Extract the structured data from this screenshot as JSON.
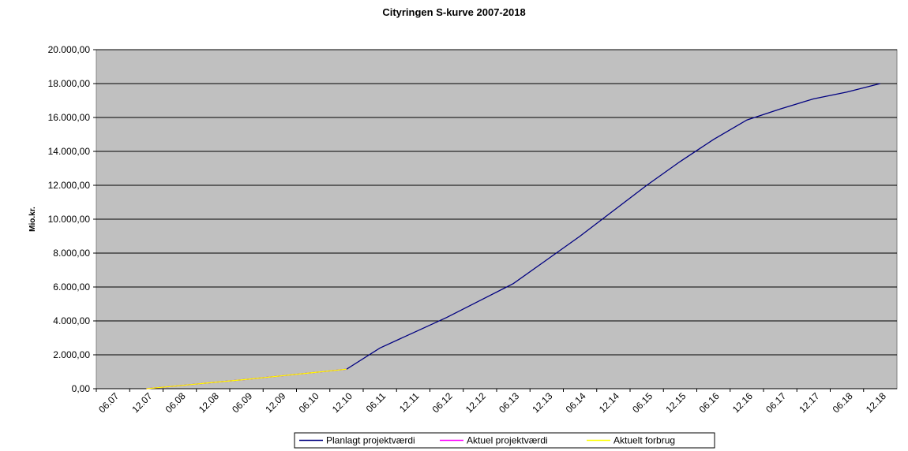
{
  "chart_data": {
    "type": "line",
    "title": "Cityringen S-kurve 2007-2018",
    "y_label": "Mio.kr.",
    "categories": [
      "06.07",
      "12.07",
      "06.08",
      "12.08",
      "06.09",
      "12.09",
      "06.10",
      "12.10",
      "06.11",
      "12.11",
      "06.12",
      "12.12",
      "06.13",
      "12.13",
      "06.14",
      "12.14",
      "06.15",
      "12.15",
      "06.16",
      "12.16",
      "06.17",
      "12.17",
      "06.18",
      "12.18"
    ],
    "series": [
      {
        "name": "Planlagt projektværdi",
        "color": "#000080",
        "values": [
          null,
          0,
          180,
          370,
          550,
          750,
          950,
          1150,
          2400,
          3300,
          4200,
          5200,
          6200,
          7600,
          9000,
          10500,
          12000,
          13400,
          14700,
          15850,
          16500,
          17100,
          17500,
          18000
        ]
      },
      {
        "name": "Aktuel projektværdi",
        "color": "#ff00ff",
        "values": [
          null,
          0,
          180,
          370,
          550,
          750,
          950,
          1150,
          null,
          null,
          null,
          null,
          null,
          null,
          null,
          null,
          null,
          null,
          null,
          null,
          null,
          null,
          null,
          null
        ]
      },
      {
        "name": "Aktuelt  forbrug",
        "color": "#ffff00",
        "values": [
          null,
          0,
          180,
          370,
          550,
          750,
          950,
          1150,
          null,
          null,
          null,
          null,
          null,
          null,
          null,
          null,
          null,
          null,
          null,
          null,
          null,
          null,
          null,
          null
        ]
      }
    ],
    "ylim": [
      0,
      20000
    ],
    "yticks": [
      {
        "value": 0,
        "label": "0,00"
      },
      {
        "value": 2000,
        "label": "2.000,00"
      },
      {
        "value": 4000,
        "label": "4.000,00"
      },
      {
        "value": 6000,
        "label": "6.000,00"
      },
      {
        "value": 8000,
        "label": "8.000,00"
      },
      {
        "value": 10000,
        "label": "10.000,00"
      },
      {
        "value": 12000,
        "label": "12.000,00"
      },
      {
        "value": 14000,
        "label": "14.000,00"
      },
      {
        "value": 16000,
        "label": "16.000,00"
      },
      {
        "value": 18000,
        "label": "18.000,00"
      },
      {
        "value": 20000,
        "label": "20.000,00"
      }
    ],
    "grid": true,
    "legend": "bottom",
    "background": "#c0c0c0"
  }
}
